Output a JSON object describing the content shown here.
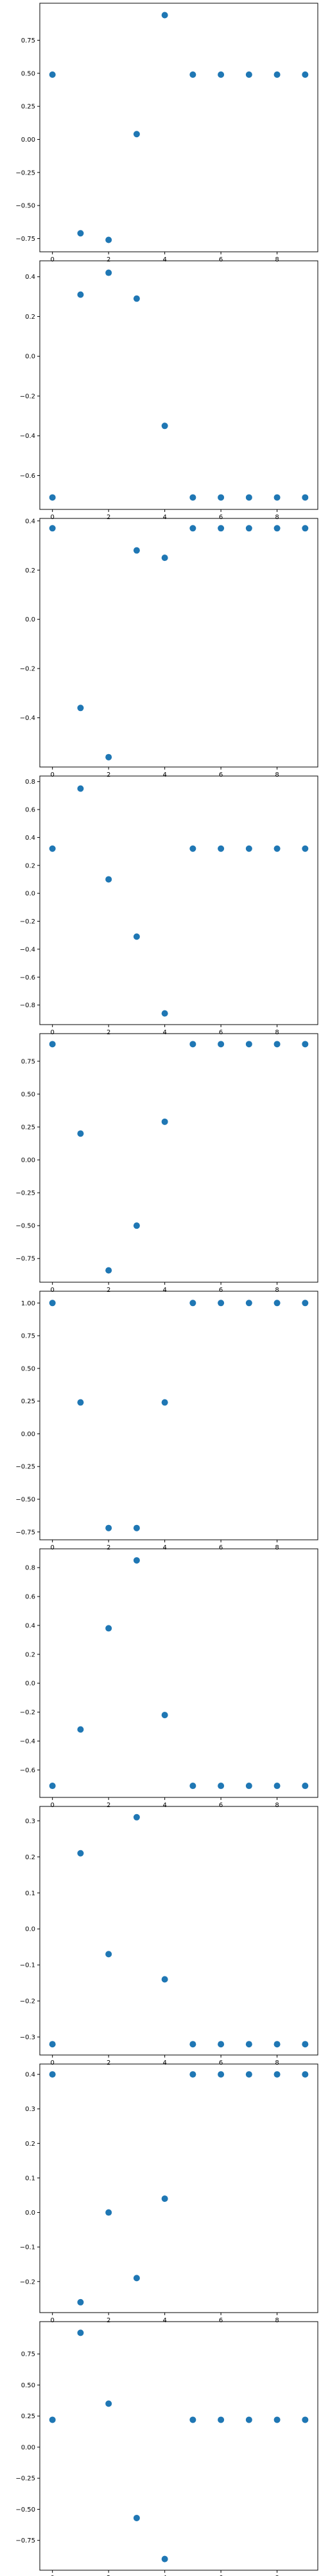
{
  "colors": {
    "marker": "#1f77b4",
    "axes": "#000000",
    "background": "#ffffff"
  },
  "chart_data": [
    {
      "type": "scatter",
      "x": [
        0,
        1,
        2,
        3,
        4,
        5,
        6,
        7,
        8,
        9
      ],
      "y": [
        0.49,
        -0.71,
        -0.76,
        0.04,
        0.94,
        0.49,
        0.49,
        0.49,
        0.49,
        0.49
      ],
      "ylim": [
        -0.85,
        1.03
      ],
      "xlim": [
        -0.45,
        9.45
      ],
      "yticks": [
        -0.75,
        -0.5,
        -0.25,
        0.0,
        0.25,
        0.5,
        0.75
      ],
      "ytick_labels": [
        "−0.75",
        "−0.50",
        "−0.25",
        "0.00",
        "0.25",
        "0.50",
        "0.75"
      ],
      "xticks": [
        0,
        2,
        4,
        6,
        8
      ],
      "xtick_labels": [
        "0",
        "2",
        "4",
        "6",
        "8"
      ],
      "title": "",
      "xlabel": "",
      "ylabel": "",
      "grid": false
    },
    {
      "type": "scatter",
      "x": [
        0,
        1,
        2,
        3,
        4,
        5,
        6,
        7,
        8,
        9
      ],
      "y": [
        -0.71,
        0.31,
        0.42,
        0.29,
        -0.35,
        -0.71,
        -0.71,
        -0.71,
        -0.71,
        -0.71
      ],
      "ylim": [
        -0.77,
        0.48
      ],
      "xlim": [
        -0.45,
        9.45
      ],
      "yticks": [
        -0.6,
        -0.4,
        -0.2,
        0.0,
        0.2,
        0.4
      ],
      "ytick_labels": [
        "−0.6",
        "−0.4",
        "−0.2",
        "0.0",
        "0.2",
        "0.4"
      ],
      "xticks": [
        0,
        2,
        4,
        6,
        8
      ],
      "xtick_labels": [
        "0",
        "2",
        "4",
        "6",
        "8"
      ],
      "title": "",
      "xlabel": "",
      "ylabel": "",
      "grid": false
    },
    {
      "type": "scatter",
      "x": [
        0,
        1,
        2,
        3,
        4,
        5,
        6,
        7,
        8,
        9
      ],
      "y": [
        0.37,
        -0.36,
        -0.56,
        0.28,
        0.25,
        0.37,
        0.37,
        0.37,
        0.37,
        0.37
      ],
      "ylim": [
        -0.6,
        0.41
      ],
      "xlim": [
        -0.45,
        9.45
      ],
      "yticks": [
        -0.4,
        -0.2,
        0.0,
        0.2,
        0.4
      ],
      "ytick_labels": [
        "−0.4",
        "−0.2",
        "0.0",
        "0.2",
        "0.4"
      ],
      "xticks": [
        0,
        2,
        4,
        6,
        8
      ],
      "xtick_labels": [
        "0",
        "2",
        "4",
        "6",
        "8"
      ],
      "title": "",
      "xlabel": "",
      "ylabel": "",
      "grid": false
    },
    {
      "type": "scatter",
      "x": [
        0,
        1,
        2,
        3,
        4,
        5,
        6,
        7,
        8,
        9
      ],
      "y": [
        0.32,
        0.75,
        0.1,
        -0.31,
        -0.86,
        0.32,
        0.32,
        0.32,
        0.32,
        0.32
      ],
      "ylim": [
        -0.94,
        0.84
      ],
      "xlim": [
        -0.45,
        9.45
      ],
      "yticks": [
        -0.8,
        -0.6,
        -0.4,
        -0.2,
        0.0,
        0.2,
        0.4,
        0.6,
        0.8
      ],
      "ytick_labels": [
        "−0.8",
        "−0.6",
        "−0.4",
        "−0.2",
        "0.0",
        "0.2",
        "0.4",
        "0.6",
        "0.8"
      ],
      "xticks": [
        0,
        2,
        4,
        6,
        8
      ],
      "xtick_labels": [
        "0",
        "2",
        "4",
        "6",
        "8"
      ],
      "title": "",
      "xlabel": "",
      "ylabel": "",
      "grid": false
    },
    {
      "type": "scatter",
      "x": [
        0,
        1,
        2,
        3,
        4,
        5,
        6,
        7,
        8,
        9
      ],
      "y": [
        0.88,
        0.2,
        -0.84,
        -0.5,
        0.29,
        0.88,
        0.88,
        0.88,
        0.88,
        0.88
      ],
      "ylim": [
        -0.93,
        0.96
      ],
      "xlim": [
        -0.45,
        9.45
      ],
      "yticks": [
        -0.75,
        -0.5,
        -0.25,
        0.0,
        0.25,
        0.5,
        0.75
      ],
      "ytick_labels": [
        "−0.75",
        "−0.50",
        "−0.25",
        "0.00",
        "0.25",
        "0.50",
        "0.75"
      ],
      "xticks": [
        0,
        2,
        4,
        6,
        8
      ],
      "xtick_labels": [
        "0",
        "2",
        "4",
        "6",
        "8"
      ],
      "title": "",
      "xlabel": "",
      "ylabel": "",
      "grid": false
    },
    {
      "type": "scatter",
      "x": [
        0,
        1,
        2,
        3,
        4,
        5,
        6,
        7,
        8,
        9
      ],
      "y": [
        1.0,
        0.24,
        -0.72,
        -0.72,
        0.24,
        1.0,
        1.0,
        1.0,
        1.0,
        1.0
      ],
      "ylim": [
        -0.81,
        1.09
      ],
      "xlim": [
        -0.45,
        9.45
      ],
      "yticks": [
        -0.75,
        -0.5,
        -0.25,
        0.0,
        0.25,
        0.5,
        0.75,
        1.0
      ],
      "ytick_labels": [
        "−0.75",
        "−0.50",
        "−0.25",
        "0.00",
        "0.25",
        "0.50",
        "0.75",
        "1.00"
      ],
      "xticks": [
        0,
        2,
        4,
        6,
        8
      ],
      "xtick_labels": [
        "0",
        "2",
        "4",
        "6",
        "8"
      ],
      "title": "",
      "xlabel": "",
      "ylabel": "",
      "grid": false
    },
    {
      "type": "scatter",
      "x": [
        0,
        1,
        2,
        3,
        4,
        5,
        6,
        7,
        8,
        9
      ],
      "y": [
        -0.71,
        -0.32,
        0.38,
        0.85,
        -0.22,
        -0.71,
        -0.71,
        -0.71,
        -0.71,
        -0.71
      ],
      "ylim": [
        -0.79,
        0.93
      ],
      "xlim": [
        -0.45,
        9.45
      ],
      "yticks": [
        -0.6,
        -0.4,
        -0.2,
        0.0,
        0.2,
        0.4,
        0.6,
        0.8
      ],
      "ytick_labels": [
        "−0.6",
        "−0.4",
        "−0.2",
        "0.0",
        "0.2",
        "0.4",
        "0.6",
        "0.8"
      ],
      "xticks": [
        0,
        2,
        4,
        6,
        8
      ],
      "xtick_labels": [
        "0",
        "2",
        "4",
        "6",
        "8"
      ],
      "title": "",
      "xlabel": "",
      "ylabel": "",
      "grid": false
    },
    {
      "type": "scatter",
      "x": [
        0,
        1,
        2,
        3,
        4,
        5,
        6,
        7,
        8,
        9
      ],
      "y": [
        -0.32,
        0.21,
        -0.07,
        0.31,
        -0.14,
        -0.32,
        -0.32,
        -0.32,
        -0.32,
        -0.32
      ],
      "ylim": [
        -0.35,
        0.34
      ],
      "xlim": [
        -0.45,
        9.45
      ],
      "yticks": [
        -0.3,
        -0.2,
        -0.1,
        0.0,
        0.1,
        0.2,
        0.3
      ],
      "ytick_labels": [
        "−0.3",
        "−0.2",
        "−0.1",
        "0.0",
        "0.1",
        "0.2",
        "0.3"
      ],
      "xticks": [
        0,
        2,
        4,
        6,
        8
      ],
      "xtick_labels": [
        "0",
        "2",
        "4",
        "6",
        "8"
      ],
      "title": "",
      "xlabel": "",
      "ylabel": "",
      "grid": false
    },
    {
      "type": "scatter",
      "x": [
        0,
        1,
        2,
        3,
        4,
        5,
        6,
        7,
        8,
        9
      ],
      "y": [
        0.4,
        -0.26,
        0.0,
        -0.19,
        0.04,
        0.4,
        0.4,
        0.4,
        0.4,
        0.4
      ],
      "ylim": [
        -0.29,
        0.43
      ],
      "xlim": [
        -0.45,
        9.45
      ],
      "yticks": [
        -0.2,
        -0.1,
        0.0,
        0.1,
        0.2,
        0.3,
        0.4
      ],
      "ytick_labels": [
        "−0.2",
        "−0.1",
        "0.0",
        "0.1",
        "0.2",
        "0.3",
        "0.4"
      ],
      "xticks": [
        0,
        2,
        4,
        6,
        8
      ],
      "xtick_labels": [
        "0",
        "2",
        "4",
        "6",
        "8"
      ],
      "title": "",
      "xlabel": "",
      "ylabel": "",
      "grid": false
    },
    {
      "type": "scatter",
      "x": [
        0,
        1,
        2,
        3,
        4,
        5,
        6,
        7,
        8,
        9
      ],
      "y": [
        0.22,
        0.92,
        0.35,
        -0.57,
        -0.9,
        0.22,
        0.22,
        0.22,
        0.22,
        0.22
      ],
      "ylim": [
        -0.99,
        1.01
      ],
      "xlim": [
        -0.45,
        9.45
      ],
      "yticks": [
        -0.75,
        -0.5,
        -0.25,
        0.0,
        0.25,
        0.5,
        0.75
      ],
      "ytick_labels": [
        "−0.75",
        "−0.50",
        "−0.25",
        "0.00",
        "0.25",
        "0.50",
        "0.75"
      ],
      "xticks": [
        0,
        2,
        4,
        6,
        8
      ],
      "xtick_labels": [
        "0",
        "2",
        "4",
        "6",
        "8"
      ],
      "title": "",
      "xlabel": "",
      "ylabel": "",
      "grid": false
    }
  ]
}
